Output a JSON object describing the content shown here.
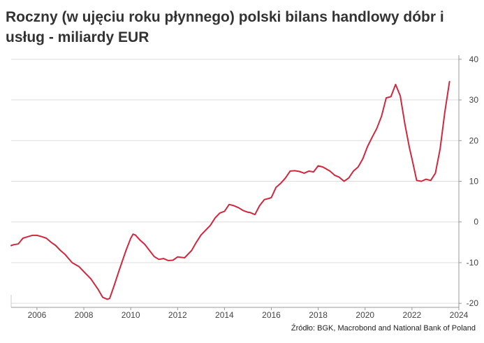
{
  "chart_data": {
    "type": "line",
    "title": "Roczny (w ujęciu roku płynnego) polski bilans handlowy dóbr i usług - miliardy EUR",
    "source": "Źródło: BGK, Macrobond and National Bank of Poland",
    "xlim": [
      2004.9,
      2024.0
    ],
    "ylim": [
      -21,
      41
    ],
    "x_ticks": [
      2006,
      2008,
      2010,
      2012,
      2014,
      2016,
      2018,
      2020,
      2022,
      2024
    ],
    "y_ticks": [
      -20,
      -10,
      0,
      10,
      20,
      30,
      40
    ],
    "grid": true,
    "y_axis_side": "right",
    "colors": {
      "line": "#d0283f",
      "grid": "#dddddd",
      "axis_text": "#444444"
    },
    "series": [
      {
        "x": [
          2004.9,
          2005.0,
          2005.2,
          2005.4,
          2005.5,
          2005.8,
          2006.0,
          2006.2,
          2006.4,
          2006.6,
          2006.8,
          2007.0,
          2007.2,
          2007.5,
          2007.8,
          2008.0,
          2008.3,
          2008.6,
          2008.8,
          2009.0,
          2009.1,
          2009.3,
          2009.5,
          2009.8,
          2010.0,
          2010.1,
          2010.2,
          2010.4,
          2010.6,
          2010.8,
          2011.0,
          2011.2,
          2011.4,
          2011.6,
          2011.8,
          2012.0,
          2012.3,
          2012.6,
          2012.8,
          2013.0,
          2013.2,
          2013.4,
          2013.6,
          2013.8,
          2014.0,
          2014.2,
          2014.4,
          2014.6,
          2014.8,
          2015.0,
          2015.1,
          2015.3,
          2015.5,
          2015.7,
          2015.9,
          2016.0,
          2016.2,
          2016.4,
          2016.6,
          2016.8,
          2017.0,
          2017.2,
          2017.4,
          2017.6,
          2017.8,
          2018.0,
          2018.2,
          2018.5,
          2018.7,
          2018.9,
          2019.1,
          2019.3,
          2019.5,
          2019.7,
          2019.9,
          2020.1,
          2020.3,
          2020.5,
          2020.7,
          2020.9,
          2021.1,
          2021.3,
          2021.5,
          2021.7,
          2021.9,
          2022.0,
          2022.2,
          2022.4,
          2022.6,
          2022.8,
          2023.0,
          2023.2,
          2023.4,
          2023.6
        ],
        "y": [
          -5.8,
          -5.6,
          -5.4,
          -4.0,
          -3.8,
          -3.3,
          -3.3,
          -3.6,
          -4.0,
          -5.0,
          -5.8,
          -7.0,
          -8.0,
          -10.0,
          -11.0,
          -12.2,
          -14.0,
          -16.5,
          -18.5,
          -19.0,
          -18.8,
          -15.5,
          -12.0,
          -7.0,
          -4.0,
          -3.0,
          -3.2,
          -4.5,
          -5.5,
          -7.0,
          -8.5,
          -9.2,
          -9.0,
          -9.5,
          -9.4,
          -8.6,
          -8.8,
          -7.0,
          -5.0,
          -3.2,
          -2.0,
          -0.8,
          1.0,
          2.2,
          2.6,
          4.3,
          4.0,
          3.5,
          2.8,
          2.4,
          2.3,
          1.8,
          4.0,
          5.5,
          5.8,
          6.0,
          8.5,
          9.5,
          10.8,
          12.5,
          12.6,
          12.4,
          12.0,
          12.5,
          12.3,
          13.8,
          13.5,
          12.5,
          11.5,
          11.0,
          10.0,
          10.8,
          12.5,
          13.5,
          15.5,
          18.5,
          20.8,
          23.0,
          26.0,
          30.5,
          30.8,
          33.8,
          31.0,
          24.0,
          18.0,
          15.5,
          10.2,
          10.0,
          10.5,
          10.2,
          12.0,
          18.0,
          27.0,
          34.5
        ]
      }
    ]
  }
}
